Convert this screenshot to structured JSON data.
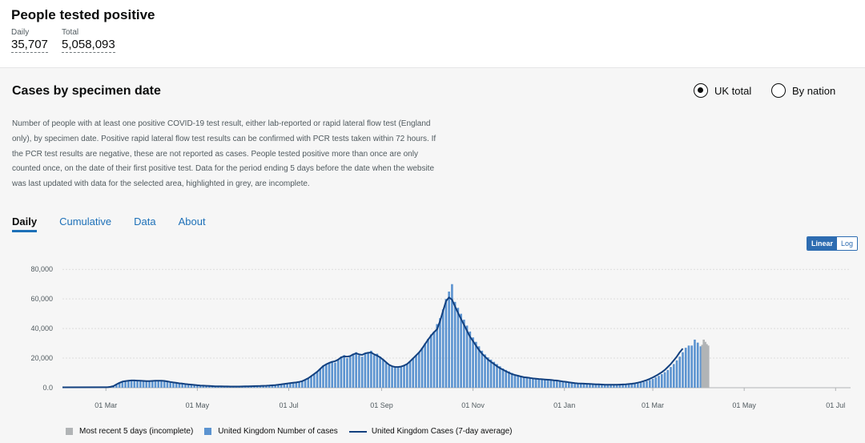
{
  "header": {
    "title": "People tested positive",
    "daily_label": "Daily",
    "daily_value": "35,707",
    "total_label": "Total",
    "total_value": "5,058,093"
  },
  "card": {
    "title": "Cases by specimen date",
    "radio_uk": "UK total",
    "radio_nation": "By nation",
    "selected": "UK total",
    "description": "Number of people with at least one positive COVID-19 test result, either lab-reported or rapid lateral flow test (England only), by specimen date. Positive rapid lateral flow test results can be confirmed with PCR tests taken within 72 hours. If the PCR test results are negative, these are not reported as cases. People tested positive more than once are only counted once, on the date of their first positive test. Data for the period ending 5 days before the date when the website was last updated with data for the selected area, highlighted in grey, are incomplete.",
    "tabs": [
      "Daily",
      "Cumulative",
      "Data",
      "About"
    ],
    "active_tab": "Daily",
    "scale_linear": "Linear",
    "scale_log": "Log"
  },
  "colors": {
    "bar": "#5b93d0",
    "line": "#12407f",
    "incomplete": "#b1b4b6",
    "tab": "#1d70b8"
  },
  "chart_data": {
    "type": "bar",
    "title": "Cases by specimen date",
    "xlabel": "",
    "ylabel": "",
    "ylim": [
      0,
      85000
    ],
    "grid": true,
    "yticks": [
      0,
      20000,
      40000,
      60000,
      80000
    ],
    "ytick_labels": [
      "0.0",
      "20,000",
      "40,000",
      "60,000",
      "80,000"
    ],
    "x_tick_labels": [
      "01 Mar",
      "01 May",
      "01 Jul",
      "01 Sep",
      "01 Nov",
      "01 Jan",
      "01 Mar",
      "01 May",
      "01 Jul"
    ],
    "x_tick_days": [
      29,
      90,
      151,
      213,
      274,
      335,
      394,
      455,
      516
    ],
    "x_range_days": [
      0,
      526
    ],
    "bar_start_day": 30,
    "bar_step_days": 2,
    "incomplete_days": 5,
    "series": [
      {
        "name": "United Kingdom Number of cases",
        "kind": "bar",
        "values": [
          300,
          600,
          1100,
          2300,
          3500,
          4200,
          4600,
          4700,
          5000,
          4800,
          4900,
          4700,
          4600,
          4500,
          4300,
          4600,
          4800,
          4900,
          4600,
          4800,
          4300,
          3900,
          3600,
          3300,
          3000,
          2800,
          2500,
          2300,
          2100,
          1900,
          1700,
          1500,
          1400,
          1300,
          1200,
          1100,
          1000,
          950,
          900,
          900,
          850,
          800,
          800,
          800,
          850,
          900,
          950,
          1000,
          1050,
          1100,
          1150,
          1200,
          1300,
          1400,
          1500,
          1600,
          1800,
          2000,
          2300,
          2600,
          2900,
          3200,
          3400,
          3600,
          4000,
          4500,
          5500,
          6500,
          8000,
          9500,
          11000,
          13000,
          15000,
          16000,
          17000,
          18000,
          17000,
          19000,
          21000,
          22000,
          20000,
          21000,
          23000,
          24000,
          22000,
          21000,
          23000,
          24000,
          25000,
          22000,
          23000,
          21000,
          19000,
          17000,
          15000,
          14000,
          13500,
          13500,
          14000,
          15000,
          16000,
          18000,
          20000,
          22000,
          24000,
          27000,
          30000,
          33000,
          36000,
          38000,
          43000,
          47000,
          53000,
          60000,
          65000,
          70000,
          58000,
          54000,
          50000,
          46000,
          42000,
          38000,
          34000,
          31000,
          28000,
          25000,
          22500,
          20500,
          19000,
          17500,
          16000,
          14500,
          13000,
          12000,
          11000,
          10000,
          9000,
          8500,
          8000,
          7500,
          7000,
          6800,
          6500,
          6200,
          6000,
          5800,
          5700,
          5500,
          5400,
          5200,
          5000,
          4800,
          4500,
          4200,
          4000,
          3700,
          3400,
          3100,
          2900,
          2800,
          2700,
          2600,
          2500,
          2400,
          2300,
          2200,
          2100,
          2000,
          2000,
          2000,
          2000,
          2000,
          2100,
          2200,
          2300,
          2500,
          2700,
          3000,
          3400,
          3900,
          4500,
          5200,
          6000,
          7000,
          8000,
          9200,
          10500,
          12000,
          14000,
          16000,
          18500,
          21000,
          24000,
          27000,
          28500,
          28500,
          32500,
          30500,
          28000
        ]
      },
      {
        "name": "United Kingdom Cases (7-day average)",
        "kind": "line",
        "values": [
          300,
          600,
          1100,
          2200,
          3300,
          4100,
          4500,
          4700,
          4900,
          4900,
          4800,
          4700,
          4600,
          4500,
          4500,
          4600,
          4700,
          4700,
          4700,
          4600,
          4300,
          3900,
          3600,
          3300,
          3000,
          2800,
          2500,
          2300,
          2100,
          1900,
          1700,
          1500,
          1400,
          1300,
          1200,
          1100,
          1000,
          950,
          900,
          880,
          850,
          820,
          800,
          800,
          830,
          880,
          930,
          980,
          1030,
          1080,
          1130,
          1200,
          1280,
          1380,
          1480,
          1600,
          1780,
          2000,
          2280,
          2580,
          2880,
          3150,
          3380,
          3600,
          3950,
          4450,
          5400,
          6400,
          7800,
          9300,
          10800,
          12700,
          14600,
          15800,
          16800,
          17500,
          18000,
          19000,
          20500,
          21200,
          21000,
          21400,
          22500,
          23200,
          22600,
          22200,
          23200,
          23600,
          23800,
          22600,
          21700,
          20500,
          19000,
          17200,
          15500,
          14500,
          14000,
          14000,
          14300,
          15000,
          16000,
          17800,
          19800,
          21800,
          23800,
          26500,
          29500,
          32500,
          35200,
          37500,
          39500,
          45000,
          52000,
          58500,
          61000,
          59500,
          55000,
          50500,
          46500,
          42500,
          38500,
          34500,
          31500,
          28500,
          25500,
          23000,
          21000,
          19000,
          17500,
          16000,
          14500,
          13200,
          12200,
          11100,
          10100,
          9200,
          8600,
          8100,
          7600,
          7100,
          6900,
          6600,
          6300,
          6100,
          5900,
          5750,
          5550,
          5400,
          5250,
          5050,
          4850,
          4550,
          4250,
          4000,
          3700,
          3400,
          3150,
          2950,
          2850,
          2750,
          2650,
          2550,
          2450,
          2350,
          2250,
          2150,
          2050,
          2000,
          2000,
          2000,
          2000,
          2100,
          2200,
          2300,
          2500,
          2700,
          3000,
          3400,
          3900,
          4500,
          5200,
          6000,
          7000,
          8000,
          9200,
          10500,
          12000,
          14000,
          16000,
          18500,
          21000,
          24000,
          26500
        ]
      },
      {
        "name": "Most recent 5 days (incomplete)",
        "kind": "bar",
        "values": [
          29000,
          32500,
          31000,
          29500,
          28500
        ]
      }
    ]
  },
  "legend": {
    "incomplete": "Most recent 5 days (incomplete)",
    "cases": "United Kingdom Number of cases",
    "average": "United Kingdom Cases (7-day average)"
  }
}
